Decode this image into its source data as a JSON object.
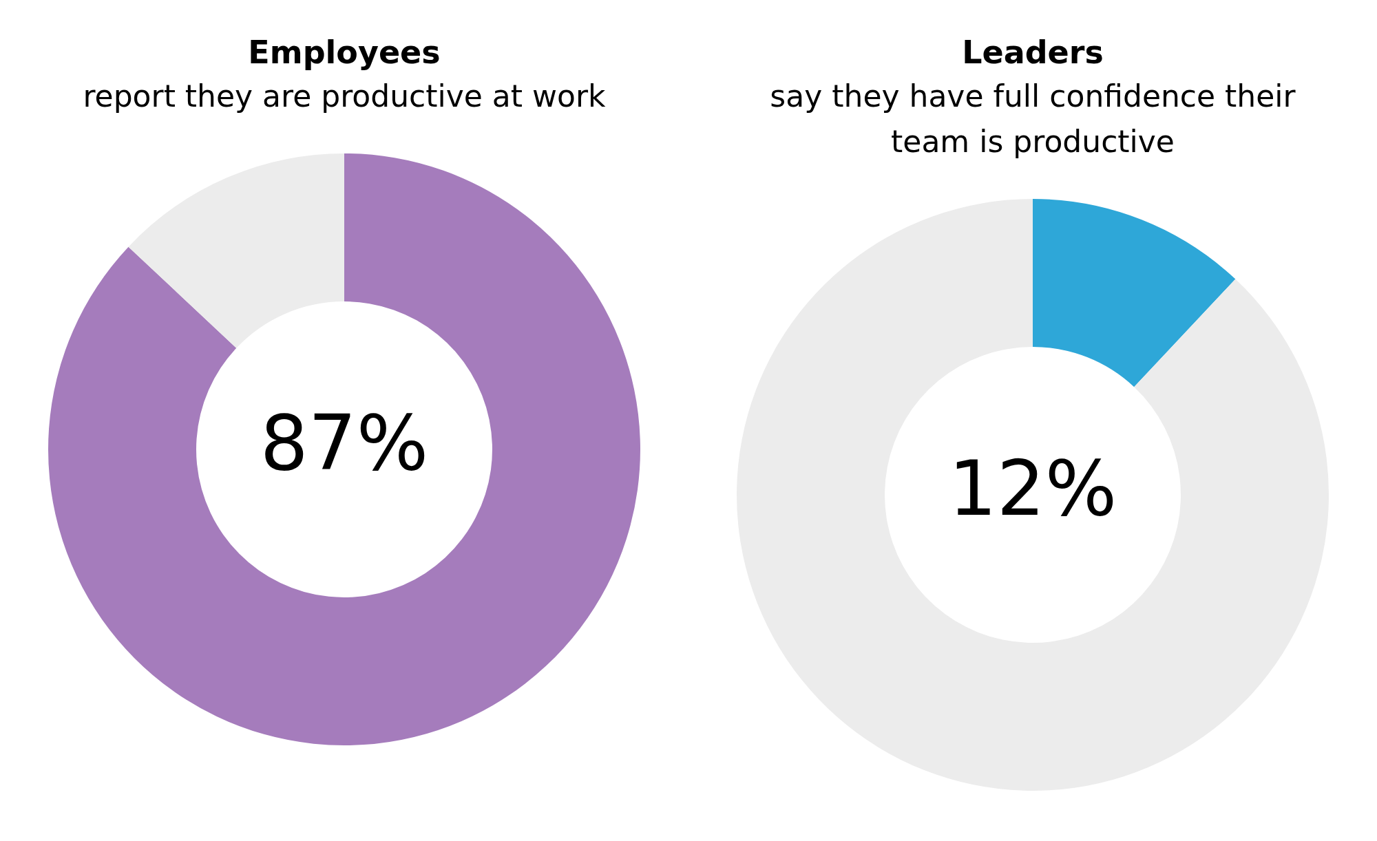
{
  "chart_data": [
    {
      "type": "donut",
      "title": "Employees",
      "subtitle": "report they are productive at work",
      "categories": [
        null,
        null
      ],
      "values": [
        87,
        13
      ],
      "colors": [
        "#a57cbc",
        "#ececec"
      ],
      "value_labels": [
        "87%",
        null
      ],
      "legend": false
    },
    {
      "type": "donut",
      "title": "Leaders",
      "subtitle": "say they have full confidence their team is productive",
      "categories": [
        null,
        null
      ],
      "values": [
        12,
        88
      ],
      "colors": [
        "#2ea7d8",
        "#ececec"
      ],
      "value_labels": [
        "12%",
        null
      ],
      "legend": false
    }
  ]
}
